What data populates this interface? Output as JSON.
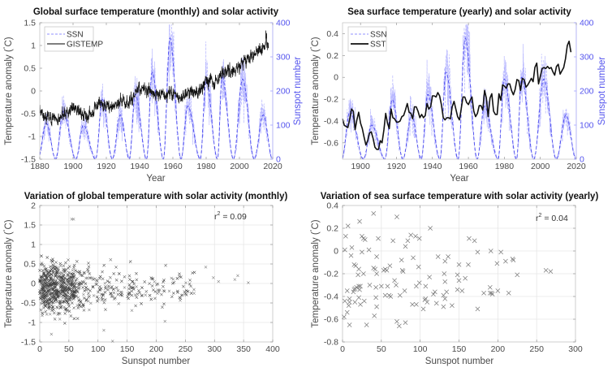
{
  "colors": {
    "ssn": "#4a4aee",
    "temperature": "#000000",
    "scatter": "#444444",
    "axis_right": "#5555ee",
    "axis": "#4a4a4a",
    "grid": "#e6e6e6"
  },
  "chart_data": [
    {
      "id": "global-monthly",
      "type": "line",
      "title": "Global surface temperature (monthly) and solar activity",
      "xlabel": "Year",
      "ylabel": "Temperature anomaly (°C)",
      "ylabel_right": "Sunspot number",
      "xlim": [
        1880,
        2020
      ],
      "ylim": [
        -1.5,
        1.5
      ],
      "ylim_right": [
        0,
        400
      ],
      "xticks": [
        1880,
        1900,
        1920,
        1940,
        1960,
        1980,
        2000,
        2020
      ],
      "yticks": [
        -1.5,
        -1,
        -0.5,
        0,
        0.5,
        1,
        1.5
      ],
      "yticks_right": [
        0,
        100,
        200,
        300,
        400
      ],
      "grid": false,
      "legend": {
        "position": "top-left",
        "entries": [
          "SSN",
          "GISTEMP"
        ]
      },
      "series": [
        {
          "name": "SSN",
          "axis": "right",
          "style": "dashed",
          "cycle_peaks": [
            {
              "year": 1883.9,
              "value": 105
            },
            {
              "year": 1894.1,
              "value": 140
            },
            {
              "year": 1906.2,
              "value": 100
            },
            {
              "year": 1917.6,
              "value": 175
            },
            {
              "year": 1928.4,
              "value": 130
            },
            {
              "year": 1937.4,
              "value": 190
            },
            {
              "year": 1947.5,
              "value": 255
            },
            {
              "year": 1958.2,
              "value": 355
            },
            {
              "year": 1968.9,
              "value": 155
            },
            {
              "year": 1979.9,
              "value": 235
            },
            {
              "year": 1989.6,
              "value": 240
            },
            {
              "year": 2001.9,
              "value": 235
            },
            {
              "year": 2014.3,
              "value": 130
            }
          ],
          "cycle_minima_years": [
            1878.9,
            1889.6,
            1901.7,
            1913.6,
            1923.6,
            1933.8,
            1944.2,
            1954.3,
            1964.9,
            1976.5,
            1986.8,
            1996.4,
            2008.9,
            2019.9
          ]
        },
        {
          "name": "GISTEMP",
          "axis": "left",
          "style": "solid",
          "annual_means": {
            "1880": -0.45,
            "1885": -0.6,
            "1890": -0.6,
            "1895": -0.5,
            "1900": -0.35,
            "1905": -0.5,
            "1910": -0.55,
            "1915": -0.25,
            "1920": -0.35,
            "1925": -0.3,
            "1930": -0.2,
            "1935": -0.2,
            "1940": 0.05,
            "1945": 0.05,
            "1950": -0.1,
            "1955": -0.05,
            "1960": -0.05,
            "1965": -0.15,
            "1970": 0.0,
            "1975": -0.05,
            "1980": 0.25,
            "1985": 0.2,
            "1990": 0.4,
            "1995": 0.45,
            "2000": 0.55,
            "2005": 0.75,
            "2010": 0.8,
            "2015": 0.95,
            "2017": 1.05
          }
        }
      ]
    },
    {
      "id": "sea-yearly",
      "type": "line",
      "title": "Sea surface temperature (yearly) and solar activity",
      "xlabel": "Year",
      "ylabel": "Temperature anomaly (°C)",
      "ylabel_right": "Sunspot number",
      "xlim": [
        1890,
        2020
      ],
      "ylim": [
        -0.75,
        0.5
      ],
      "ylim_right": [
        0,
        400
      ],
      "xticks": [
        1900,
        1920,
        1940,
        1960,
        1980,
        2000,
        2020
      ],
      "yticks": [
        -0.6,
        -0.4,
        -0.2,
        0,
        0.2,
        0.4
      ],
      "yticks_right": [
        0,
        100,
        200,
        300,
        400
      ],
      "grid": false,
      "legend": {
        "position": "top-left",
        "entries": [
          "SSN",
          "SST"
        ]
      },
      "series": [
        {
          "name": "SSN",
          "axis": "right",
          "style": "dashed",
          "same_as": "global-monthly.SSN"
        },
        {
          "name": "SST",
          "axis": "left",
          "style": "solid",
          "x": [
            1890,
            1891,
            1892,
            1893,
            1894,
            1895,
            1896,
            1897,
            1898,
            1899,
            1900,
            1901,
            1902,
            1903,
            1904,
            1905,
            1906,
            1907,
            1908,
            1909,
            1910,
            1911,
            1912,
            1913,
            1914,
            1915,
            1916,
            1917,
            1918,
            1919,
            1920,
            1921,
            1922,
            1923,
            1924,
            1925,
            1926,
            1927,
            1928,
            1929,
            1930,
            1931,
            1932,
            1933,
            1934,
            1935,
            1936,
            1937,
            1938,
            1939,
            1940,
            1941,
            1942,
            1943,
            1944,
            1945,
            1946,
            1947,
            1948,
            1949,
            1950,
            1951,
            1952,
            1953,
            1954,
            1955,
            1956,
            1957,
            1958,
            1959,
            1960,
            1961,
            1962,
            1963,
            1964,
            1965,
            1966,
            1967,
            1968,
            1969,
            1970,
            1971,
            1972,
            1973,
            1974,
            1975,
            1976,
            1977,
            1978,
            1979,
            1980,
            1981,
            1982,
            1983,
            1984,
            1985,
            1986,
            1987,
            1988,
            1989,
            1990,
            1991,
            1992,
            1993,
            1994,
            1995,
            1996,
            1997,
            1998,
            1999,
            2000,
            2001,
            2002,
            2003,
            2004,
            2005,
            2006,
            2007,
            2008,
            2009,
            2010,
            2011,
            2012,
            2013,
            2014,
            2015,
            2016,
            2017
          ],
          "values": [
            -0.38,
            -0.44,
            -0.45,
            -0.46,
            -0.38,
            -0.29,
            -0.31,
            -0.48,
            -0.39,
            -0.32,
            -0.42,
            -0.47,
            -0.55,
            -0.62,
            -0.58,
            -0.51,
            -0.5,
            -0.56,
            -0.64,
            -0.66,
            -0.66,
            -0.58,
            -0.6,
            -0.48,
            -0.33,
            -0.42,
            -0.47,
            -0.29,
            -0.37,
            -0.38,
            -0.41,
            -0.41,
            -0.4,
            -0.36,
            -0.35,
            -0.3,
            -0.24,
            -0.32,
            -0.33,
            -0.38,
            -0.27,
            -0.27,
            -0.31,
            -0.37,
            -0.34,
            -0.37,
            -0.35,
            -0.24,
            -0.29,
            -0.27,
            -0.17,
            -0.17,
            -0.18,
            -0.14,
            -0.17,
            -0.25,
            -0.37,
            -0.39,
            -0.37,
            -0.37,
            -0.38,
            -0.27,
            -0.22,
            -0.29,
            -0.36,
            -0.39,
            -0.29,
            -0.18,
            -0.18,
            -0.23,
            -0.25,
            -0.21,
            -0.18,
            -0.31,
            -0.36,
            -0.33,
            -0.26,
            -0.26,
            -0.3,
            -0.12,
            -0.19,
            -0.36,
            -0.19,
            -0.15,
            -0.31,
            -0.34,
            -0.34,
            -0.15,
            -0.21,
            -0.07,
            -0.08,
            -0.1,
            -0.06,
            -0.06,
            -0.12,
            -0.16,
            -0.11,
            -0.02,
            -0.03,
            -0.12,
            -0.01,
            -0.02,
            -0.09,
            -0.07,
            -0.04,
            -0.01,
            -0.04,
            0.09,
            0.13,
            -0.06,
            0.01,
            0.08,
            0.09,
            0.08,
            0.1,
            0.08,
            0.09,
            0.05,
            0.02,
            0.1,
            0.12,
            0.03,
            0.06,
            0.09,
            0.17,
            0.29,
            0.33,
            0.23
          ]
        }
      ]
    },
    {
      "id": "global-scatter",
      "type": "scatter",
      "title": "Variation of global temperature with solar activity (monthly)",
      "xlabel": "Sunspot number",
      "ylabel": "Temperature anomaly (°C)",
      "xlim": [
        0,
        400
      ],
      "ylim": [
        -1.5,
        2
      ],
      "xticks": [
        0,
        50,
        100,
        150,
        200,
        250,
        300,
        350,
        400
      ],
      "yticks": [
        -1.5,
        -1,
        -0.5,
        0,
        0.5,
        1,
        1.5,
        2
      ],
      "grid": true,
      "marker": "x",
      "annotation": {
        "text_base": "r",
        "text_sup": "2",
        "text_rest": " = 0.09",
        "position": "top-right"
      },
      "n_points_approx": 1650,
      "notable_points": [
        [
          55,
          1.65
        ],
        [
          58,
          1.65
        ],
        [
          20,
          -1.3
        ],
        [
          125,
          -1.48
        ],
        [
          110,
          -1.2
        ],
        [
          358,
          0.02
        ],
        [
          335,
          0.1
        ],
        [
          340,
          0.2
        ],
        [
          307,
          0.05
        ],
        [
          298,
          0.15
        ],
        [
          285,
          0.42
        ],
        [
          215,
          -0.97
        ]
      ]
    },
    {
      "id": "sea-scatter",
      "type": "scatter",
      "title": "Variation of sea surface temperature with solar activity (yearly)",
      "xlabel": "Sunspot number",
      "ylabel": "Temperature anomaly (°C)",
      "xlim": [
        0,
        300
      ],
      "ylim": [
        -0.8,
        0.4
      ],
      "xticks": [
        0,
        50,
        100,
        150,
        200,
        250,
        300
      ],
      "yticks": [
        -0.8,
        -0.6,
        -0.4,
        -0.2,
        0,
        0.2,
        0.4
      ],
      "grid": true,
      "marker": "x",
      "annotation": {
        "text_base": "r",
        "text_sup": "2",
        "text_rest": " = 0.04",
        "position": "top-right"
      },
      "points": [
        [
          40,
          0.33
        ],
        [
          70,
          0.3
        ],
        [
          22,
          0.26
        ],
        [
          7,
          0.22
        ],
        [
          113,
          0.2
        ],
        [
          4,
          0.13
        ],
        [
          25,
          0.13
        ],
        [
          46,
          0.11
        ],
        [
          27,
          0.11
        ],
        [
          29,
          0.1
        ],
        [
          88,
          0.14
        ],
        [
          94,
          0.13
        ],
        [
          99,
          0.11
        ],
        [
          163,
          0.11
        ],
        [
          170,
          0.09
        ],
        [
          65,
          0.09
        ],
        [
          84,
          0.09
        ],
        [
          81,
          0.04
        ],
        [
          12,
          0.03
        ],
        [
          3,
          0.01
        ],
        [
          34,
          0.01
        ],
        [
          25,
          -0.01
        ],
        [
          174,
          -0.01
        ],
        [
          191,
          0.0
        ],
        [
          204,
          -0.01
        ],
        [
          11,
          -0.04
        ],
        [
          44,
          -0.05
        ],
        [
          123,
          -0.05
        ],
        [
          136,
          -0.05
        ],
        [
          91,
          -0.06
        ],
        [
          219,
          -0.07
        ],
        [
          220,
          -0.08
        ],
        [
          210,
          -0.09
        ],
        [
          76,
          -0.08
        ],
        [
          132,
          -0.09
        ],
        [
          199,
          -0.11
        ],
        [
          15,
          -0.12
        ],
        [
          17,
          -0.13
        ],
        [
          150,
          -0.12
        ],
        [
          162,
          -0.12
        ],
        [
          61,
          -0.13
        ],
        [
          98,
          -0.14
        ],
        [
          40,
          -0.15
        ],
        [
          42,
          -0.16
        ],
        [
          21,
          -0.16
        ],
        [
          55,
          -0.16
        ],
        [
          53,
          -0.17
        ],
        [
          57,
          -0.17
        ],
        [
          77,
          -0.17
        ],
        [
          78,
          -0.18
        ],
        [
          262,
          -0.17
        ],
        [
          268,
          -0.18
        ],
        [
          131,
          -0.2
        ],
        [
          44,
          -0.2
        ],
        [
          27,
          -0.2
        ],
        [
          20,
          -0.21
        ],
        [
          148,
          -0.21
        ],
        [
          225,
          -0.21
        ],
        [
          112,
          -0.23
        ],
        [
          158,
          -0.24
        ],
        [
          67,
          -0.26
        ],
        [
          150,
          -0.26
        ],
        [
          132,
          -0.27
        ],
        [
          99,
          -0.28
        ],
        [
          35,
          -0.3
        ],
        [
          50,
          -0.31
        ],
        [
          21,
          -0.31
        ],
        [
          18,
          -0.32
        ],
        [
          23,
          -0.31
        ],
        [
          16,
          -0.33
        ],
        [
          43,
          -0.32
        ],
        [
          58,
          -0.31
        ],
        [
          69,
          -0.3
        ],
        [
          95,
          -0.31
        ],
        [
          107,
          -0.31
        ],
        [
          190,
          -0.32
        ],
        [
          15,
          -0.34
        ],
        [
          6,
          -0.35
        ],
        [
          22,
          -0.34
        ],
        [
          80,
          -0.35
        ],
        [
          119,
          -0.36
        ],
        [
          134,
          -0.36
        ],
        [
          148,
          -0.34
        ],
        [
          154,
          -0.35
        ],
        [
          200,
          -0.35
        ],
        [
          14,
          -0.36
        ],
        [
          182,
          -0.37
        ],
        [
          192,
          -0.37
        ],
        [
          214,
          -0.37
        ],
        [
          190,
          -0.37
        ],
        [
          193,
          -0.38
        ],
        [
          117,
          -0.38
        ],
        [
          55,
          -0.39
        ],
        [
          60,
          -0.39
        ],
        [
          62,
          -0.4
        ],
        [
          74,
          -0.39
        ],
        [
          130,
          -0.39
        ],
        [
          43,
          -0.41
        ],
        [
          21,
          -0.41
        ],
        [
          9,
          -0.42
        ],
        [
          107,
          -0.42
        ],
        [
          106,
          -0.43
        ],
        [
          132,
          -0.42
        ],
        [
          3,
          -0.44
        ],
        [
          9,
          -0.45
        ],
        [
          16,
          -0.45
        ],
        [
          28,
          -0.44
        ],
        [
          23,
          -0.47
        ],
        [
          109,
          -0.45
        ],
        [
          121,
          -0.46
        ],
        [
          141,
          -0.48
        ],
        [
          90,
          -0.47
        ],
        [
          95,
          -0.47
        ],
        [
          8,
          -0.48
        ],
        [
          44,
          -0.49
        ],
        [
          104,
          -0.51
        ],
        [
          130,
          -0.49
        ],
        [
          174,
          -0.51
        ],
        [
          6,
          -0.54
        ],
        [
          41,
          -0.57
        ],
        [
          2,
          -0.58
        ],
        [
          9,
          -0.65
        ],
        [
          31,
          -0.65
        ],
        [
          70,
          -0.62
        ],
        [
          81,
          -0.63
        ],
        [
          73,
          -0.66
        ]
      ]
    }
  ]
}
